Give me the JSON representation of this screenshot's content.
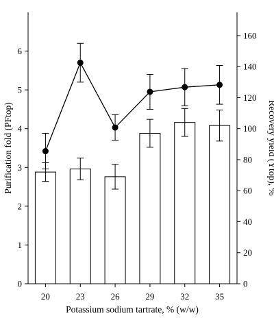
{
  "chart_data": {
    "type": "bar+line",
    "categories": [
      "20",
      "23",
      "26",
      "29",
      "32",
      "35"
    ],
    "xlabel": "Potassium sodium tartrate, % (w/w)",
    "ylabel_left": "Purification fold (PFtop)",
    "ylabel_right": "Recovery yield (Ytop), %",
    "y_left_lim": [
      0,
      7
    ],
    "y_left_ticks": [
      "0",
      "1",
      "2",
      "3",
      "4",
      "5",
      "6"
    ],
    "y_right_lim": [
      0,
      175
    ],
    "y_right_ticks": [
      "0",
      "20",
      "40",
      "60",
      "80",
      "100",
      "120",
      "140",
      "160"
    ],
    "bars": {
      "axis": "right",
      "values": [
        72,
        74,
        69,
        97,
        104,
        102
      ],
      "errors": [
        6,
        7,
        8,
        9,
        9,
        10
      ]
    },
    "line": {
      "axis": "left",
      "values": [
        3.42,
        5.7,
        4.03,
        4.95,
        5.07,
        5.13
      ],
      "errors": [
        0.46,
        0.5,
        0.33,
        0.45,
        0.48,
        0.5
      ]
    }
  }
}
